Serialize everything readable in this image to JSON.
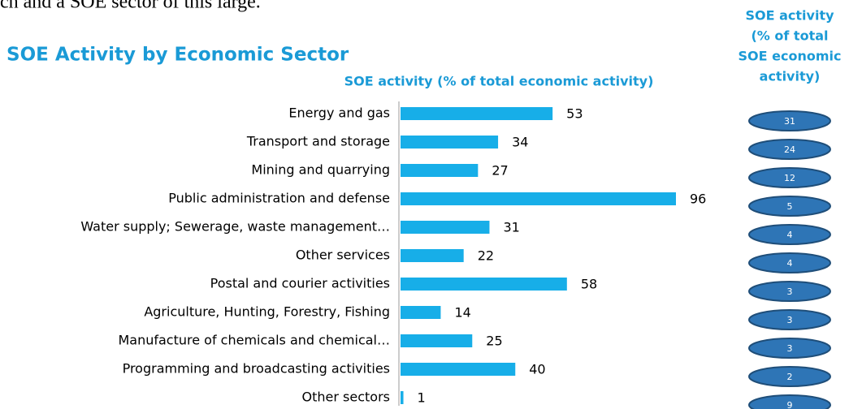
{
  "top_text": "ch and a SOE sector of this large.",
  "chart_data": {
    "type": "bar",
    "orientation": "horizontal",
    "title": "SOE Activity by Economic Sector",
    "xlabel": "SOE activity (% of total economic activity)",
    "color": "#17aee8",
    "categories": [
      "Energy and gas",
      "Transport and storage",
      "Mining and quarrying",
      "Public administration and defense",
      "Water supply; Sewerage, waste management…",
      "Other services",
      "Postal and courier activities",
      "Agriculture, Hunting, Forestry, Fishing",
      "Manufacture of chemicals and chemical…",
      "Programming and broadcasting activities",
      "Other sectors"
    ],
    "values": [
      53,
      34,
      27,
      96,
      31,
      22,
      58,
      14,
      25,
      40,
      1
    ],
    "share_column": {
      "title_lines": [
        "SOE activity",
        "(% of total",
        "SOE economic",
        "activity)"
      ],
      "color": "#2e75b6",
      "values": [
        31,
        24,
        12,
        5,
        4,
        4,
        3,
        3,
        3,
        2,
        9
      ]
    }
  }
}
